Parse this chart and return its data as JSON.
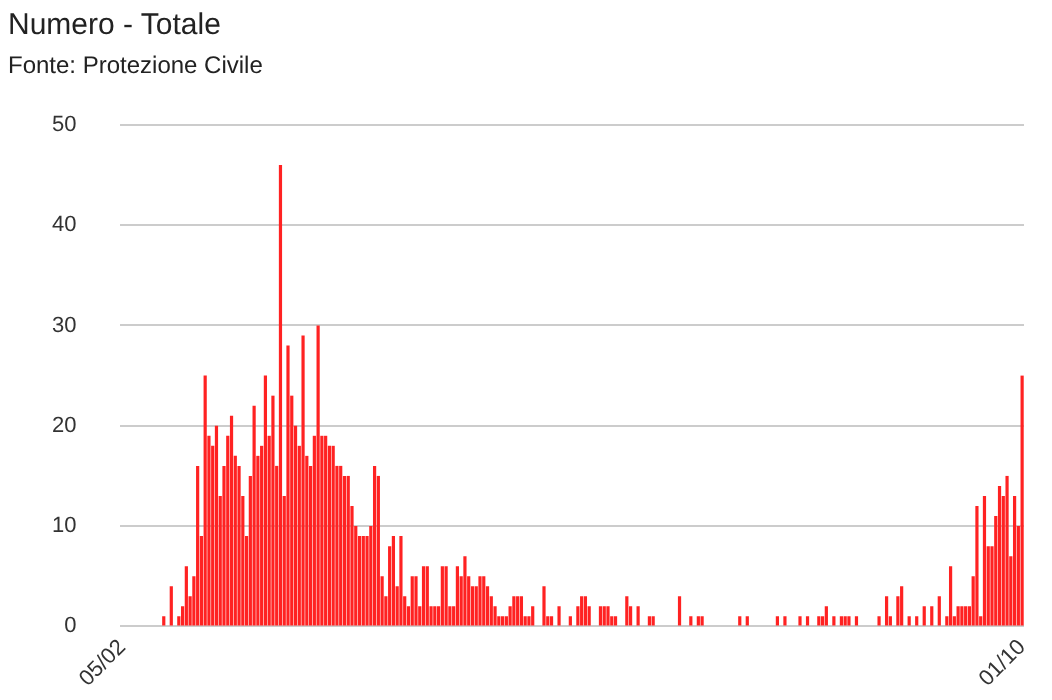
{
  "chart_data": {
    "type": "bar",
    "title": "Numero - Totale",
    "subtitle": "Fonte: Protezione Civile",
    "categories": [
      "05/02",
      null,
      null,
      null,
      null,
      null,
      null,
      null,
      null,
      null,
      null,
      null,
      null,
      null,
      null,
      null,
      null,
      null,
      null,
      null,
      null,
      null,
      null,
      null,
      null,
      null,
      null,
      null,
      null,
      null,
      null,
      null,
      null,
      null,
      null,
      null,
      null,
      null,
      null,
      null,
      null,
      null,
      null,
      null,
      null,
      null,
      null,
      null,
      null,
      null,
      null,
      null,
      null,
      null,
      null,
      null,
      null,
      null,
      null,
      null,
      null,
      null,
      null,
      null,
      null,
      null,
      null,
      null,
      null,
      null,
      null,
      null,
      null,
      null,
      null,
      null,
      null,
      null,
      null,
      null,
      null,
      null,
      null,
      null,
      null,
      null,
      null,
      null,
      null,
      null,
      null,
      null,
      null,
      null,
      null,
      null,
      null,
      null,
      null,
      null,
      null,
      null,
      null,
      null,
      null,
      null,
      null,
      null,
      null,
      null,
      null,
      null,
      null,
      null,
      null,
      null,
      null,
      null,
      null,
      null,
      null,
      null,
      null,
      null,
      null,
      null,
      null,
      null,
      null,
      null,
      null,
      null,
      null,
      null,
      null,
      null,
      null,
      null,
      null,
      null,
      null,
      null,
      null,
      null,
      null,
      null,
      null,
      null,
      null,
      null,
      null,
      null,
      null,
      null,
      null,
      null,
      null,
      null,
      null,
      null,
      null,
      null,
      null,
      null,
      null,
      null,
      null,
      null,
      null,
      null,
      null,
      null,
      null,
      null,
      null,
      null,
      null,
      null,
      null,
      null,
      null,
      null,
      null,
      null,
      null,
      null,
      null,
      null,
      null,
      null,
      null,
      null,
      null,
      null,
      null,
      null,
      null,
      null,
      null,
      null,
      null,
      null,
      null,
      null,
      null,
      null,
      null,
      null,
      null,
      null,
      null,
      null,
      null,
      null,
      null,
      null,
      null,
      null,
      null,
      null,
      null,
      null,
      null,
      null,
      null,
      null,
      null,
      null,
      null,
      null,
      null,
      null,
      null,
      null,
      null,
      null,
      null,
      null,
      null,
      "01/10"
    ],
    "values": [
      0,
      0,
      0,
      0,
      0,
      0,
      0,
      0,
      0,
      0,
      0,
      1,
      0,
      4,
      0,
      1,
      2,
      6,
      3,
      5,
      16,
      9,
      25,
      19,
      18,
      20,
      13,
      16,
      19,
      21,
      17,
      16,
      13,
      9,
      15,
      22,
      17,
      18,
      25,
      19,
      23,
      16,
      46,
      13,
      28,
      23,
      20,
      18,
      29,
      17,
      16,
      19,
      30,
      19,
      19,
      18,
      18,
      16,
      16,
      15,
      15,
      12,
      10,
      9,
      9,
      9,
      10,
      16,
      15,
      5,
      3,
      8,
      9,
      4,
      9,
      3,
      2,
      5,
      5,
      2,
      6,
      6,
      2,
      2,
      2,
      6,
      6,
      2,
      2,
      6,
      5,
      7,
      5,
      4,
      4,
      5,
      5,
      4,
      3,
      2,
      1,
      1,
      1,
      2,
      3,
      3,
      3,
      1,
      1,
      2,
      0,
      0,
      4,
      1,
      1,
      0,
      2,
      0,
      0,
      1,
      0,
      2,
      3,
      3,
      2,
      0,
      0,
      2,
      2,
      2,
      1,
      1,
      0,
      0,
      3,
      2,
      0,
      2,
      0,
      0,
      1,
      1,
      0,
      0,
      0,
      0,
      0,
      0,
      3,
      0,
      0,
      1,
      0,
      1,
      1,
      0,
      0,
      0,
      0,
      0,
      0,
      0,
      0,
      0,
      1,
      0,
      1,
      0,
      0,
      0,
      0,
      0,
      0,
      0,
      1,
      0,
      1,
      0,
      0,
      0,
      1,
      0,
      1,
      0,
      0,
      1,
      1,
      2,
      0,
      1,
      0,
      1,
      1,
      1,
      0,
      1,
      0,
      0,
      0,
      0,
      0,
      1,
      0,
      3,
      1,
      0,
      3,
      4,
      0,
      1,
      0,
      1,
      0,
      2,
      0,
      2,
      0,
      3,
      0,
      1,
      6,
      1,
      2,
      2,
      2,
      2,
      5,
      12,
      1,
      13,
      8,
      8,
      11,
      14,
      13,
      15,
      7,
      13,
      10,
      25
    ],
    "color": "#ff2222",
    "ylim": [
      0,
      50
    ],
    "yticks": [
      0,
      10,
      20,
      30,
      40,
      50
    ],
    "grid": "y",
    "legend": false
  }
}
